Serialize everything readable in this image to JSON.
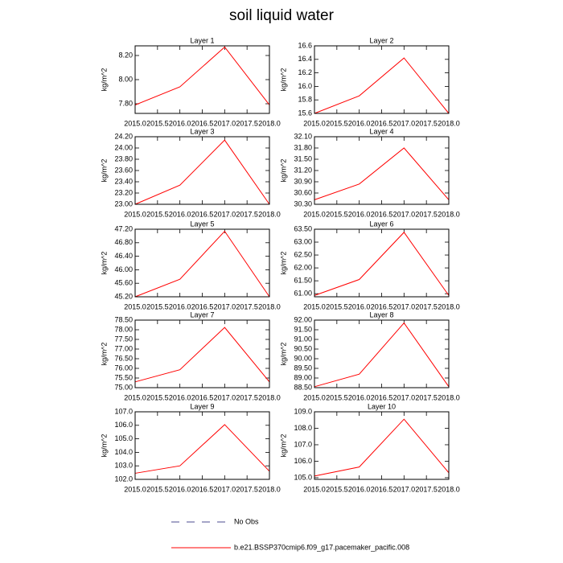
{
  "title": "soil liquid water",
  "legend": [
    {
      "name": "No Obs",
      "color": "#4b4b8f",
      "dash": true
    },
    {
      "name": "b.e21.BSSP370cmip6.f09_g17.pacemaker_pacific.008",
      "color": "#ff0000",
      "dash": false
    }
  ],
  "chart_data": [
    {
      "type": "line",
      "title": "Layer 1",
      "ylabel": "kg/m^2",
      "x": [
        2015,
        2016,
        2017,
        2018
      ],
      "series": [
        {
          "color": "#ff0000",
          "values": [
            7.79,
            7.94,
            8.27,
            7.79
          ]
        }
      ],
      "xlim": [
        2015,
        2018
      ],
      "xticks": [
        {
          "value": 2015,
          "label": "2015.0"
        },
        {
          "value": 2015.5,
          "label": "2015.5"
        },
        {
          "value": 2016,
          "label": "2016.0"
        },
        {
          "value": 2016.5,
          "label": "2016.5"
        },
        {
          "value": 2017,
          "label": "2017.0"
        },
        {
          "value": 2017.5,
          "label": "2017.5"
        },
        {
          "value": 2018,
          "label": "2018.0"
        }
      ],
      "ylim": [
        7.72,
        8.28
      ],
      "yticks": [
        {
          "value": 7.8,
          "label": "7.80"
        },
        {
          "value": 8,
          "label": "8.00"
        },
        {
          "value": 8.2,
          "label": "8.20"
        }
      ]
    },
    {
      "type": "line",
      "title": "Layer 2",
      "ylabel": "kg/m^2",
      "x": [
        2015,
        2016,
        2017,
        2018
      ],
      "series": [
        {
          "color": "#ff0000",
          "values": [
            15.6,
            15.86,
            16.42,
            15.6
          ]
        }
      ],
      "xlim": [
        2015,
        2018
      ],
      "xticks": [
        {
          "value": 2015,
          "label": "2015.0"
        },
        {
          "value": 2015.5,
          "label": "2015.5"
        },
        {
          "value": 2016,
          "label": "2016.0"
        },
        {
          "value": 2016.5,
          "label": "2016.5"
        },
        {
          "value": 2017,
          "label": "2017.0"
        },
        {
          "value": 2017.5,
          "label": "2017.5"
        },
        {
          "value": 2018,
          "label": "2018.0"
        }
      ],
      "ylim": [
        15.6,
        16.6
      ],
      "yticks": [
        15.6,
        15.8,
        {
          "value": 16,
          "label": "16.0"
        },
        16.2,
        16.4,
        16.6
      ]
    },
    {
      "type": "line",
      "title": "Layer 3",
      "ylabel": "kg/m^2",
      "x": [
        2015,
        2016,
        2017,
        2018
      ],
      "series": [
        {
          "color": "#ff0000",
          "values": [
            23.0,
            23.34,
            24.14,
            23.0
          ]
        }
      ],
      "xlim": [
        2015,
        2018
      ],
      "xticks": [
        {
          "value": 2015,
          "label": "2015.0"
        },
        {
          "value": 2015.5,
          "label": "2015.5"
        },
        {
          "value": 2016,
          "label": "2016.0"
        },
        {
          "value": 2016.5,
          "label": "2016.5"
        },
        {
          "value": 2017,
          "label": "2017.0"
        },
        {
          "value": 2017.5,
          "label": "2017.5"
        },
        {
          "value": 2018,
          "label": "2018.0"
        }
      ],
      "ylim": [
        23.0,
        24.2
      ],
      "yticks": [
        {
          "value": 23,
          "label": "23.00"
        },
        {
          "value": 23.2,
          "label": "23.20"
        },
        {
          "value": 23.4,
          "label": "23.40"
        },
        {
          "value": 23.6,
          "label": "23.60"
        },
        {
          "value": 23.8,
          "label": "23.80"
        },
        {
          "value": 24,
          "label": "24.00"
        },
        {
          "value": 24.2,
          "label": "24.20"
        }
      ]
    },
    {
      "type": "line",
      "title": "Layer 4",
      "ylabel": "kg/m^2",
      "x": [
        2015,
        2016,
        2017,
        2018
      ],
      "series": [
        {
          "color": "#ff0000",
          "values": [
            30.42,
            30.84,
            31.8,
            30.42
          ]
        }
      ],
      "xlim": [
        2015,
        2018
      ],
      "xticks": [
        {
          "value": 2015,
          "label": "2015.0"
        },
        {
          "value": 2015.5,
          "label": "2015.5"
        },
        {
          "value": 2016,
          "label": "2016.0"
        },
        {
          "value": 2016.5,
          "label": "2016.5"
        },
        {
          "value": 2017,
          "label": "2017.0"
        },
        {
          "value": 2017.5,
          "label": "2017.5"
        },
        {
          "value": 2018,
          "label": "2018.0"
        }
      ],
      "ylim": [
        30.3,
        32.1
      ],
      "yticks": [
        {
          "value": 30.3,
          "label": "30.30"
        },
        {
          "value": 30.6,
          "label": "30.60"
        },
        {
          "value": 30.9,
          "label": "30.90"
        },
        {
          "value": 31.2,
          "label": "31.20"
        },
        {
          "value": 31.5,
          "label": "31.50"
        },
        {
          "value": 31.8,
          "label": "31.80"
        },
        {
          "value": 32.1,
          "label": "32.10"
        }
      ]
    },
    {
      "type": "line",
      "title": "Layer 5",
      "ylabel": "kg/m^2",
      "x": [
        2015,
        2016,
        2017,
        2018
      ],
      "series": [
        {
          "color": "#ff0000",
          "values": [
            45.2,
            45.72,
            47.14,
            45.2
          ]
        }
      ],
      "xlim": [
        2015,
        2018
      ],
      "xticks": [
        {
          "value": 2015,
          "label": "2015.0"
        },
        {
          "value": 2015.5,
          "label": "2015.5"
        },
        {
          "value": 2016,
          "label": "2016.0"
        },
        {
          "value": 2016.5,
          "label": "2016.5"
        },
        {
          "value": 2017,
          "label": "2017.0"
        },
        {
          "value": 2017.5,
          "label": "2017.5"
        },
        {
          "value": 2018,
          "label": "2018.0"
        }
      ],
      "ylim": [
        45.2,
        47.2
      ],
      "yticks": [
        {
          "value": 45.2,
          "label": "45.20"
        },
        {
          "value": 45.6,
          "label": "45.60"
        },
        {
          "value": 46,
          "label": "46.00"
        },
        {
          "value": 46.4,
          "label": "46.40"
        },
        {
          "value": 46.8,
          "label": "46.80"
        },
        {
          "value": 47.2,
          "label": "47.20"
        }
      ]
    },
    {
      "type": "line",
      "title": "Layer 6",
      "ylabel": "kg/m^2",
      "x": [
        2015,
        2016,
        2017,
        2018
      ],
      "series": [
        {
          "color": "#ff0000",
          "values": [
            60.93,
            61.55,
            63.38,
            60.93
          ]
        }
      ],
      "xlim": [
        2015,
        2018
      ],
      "xticks": [
        {
          "value": 2015,
          "label": "2015.0"
        },
        {
          "value": 2015.5,
          "label": "2015.5"
        },
        {
          "value": 2016,
          "label": "2016.0"
        },
        {
          "value": 2016.5,
          "label": "2016.5"
        },
        {
          "value": 2017,
          "label": "2017.0"
        },
        {
          "value": 2017.5,
          "label": "2017.5"
        },
        {
          "value": 2018,
          "label": "2018.0"
        }
      ],
      "ylim": [
        60.88,
        63.5
      ],
      "yticks": [
        {
          "value": 61,
          "label": "61.00"
        },
        {
          "value": 61.5,
          "label": "61.50"
        },
        {
          "value": 62,
          "label": "62.00"
        },
        {
          "value": 62.5,
          "label": "62.50"
        },
        {
          "value": 63,
          "label": "63.00"
        },
        {
          "value": 63.5,
          "label": "63.50"
        }
      ]
    },
    {
      "type": "line",
      "title": "Layer 7",
      "ylabel": "kg/m^2",
      "x": [
        2015,
        2016,
        2017,
        2018
      ],
      "series": [
        {
          "color": "#ff0000",
          "values": [
            75.3,
            75.93,
            78.12,
            75.3
          ]
        }
      ],
      "xlim": [
        2015,
        2018
      ],
      "xticks": [
        {
          "value": 2015,
          "label": "2015.0"
        },
        {
          "value": 2015.5,
          "label": "2015.5"
        },
        {
          "value": 2016,
          "label": "2016.0"
        },
        {
          "value": 2016.5,
          "label": "2016.5"
        },
        {
          "value": 2017,
          "label": "2017.0"
        },
        {
          "value": 2017.5,
          "label": "2017.5"
        },
        {
          "value": 2018,
          "label": "2018.0"
        }
      ],
      "ylim": [
        75.0,
        78.5
      ],
      "yticks": [
        {
          "value": 75,
          "label": "75.00"
        },
        {
          "value": 75.5,
          "label": "75.50"
        },
        {
          "value": 76,
          "label": "76.00"
        },
        {
          "value": 76.5,
          "label": "76.50"
        },
        {
          "value": 77,
          "label": "77.00"
        },
        {
          "value": 77.5,
          "label": "77.50"
        },
        {
          "value": 78,
          "label": "78.00"
        },
        {
          "value": 78.5,
          "label": "78.50"
        }
      ]
    },
    {
      "type": "line",
      "title": "Layer 8",
      "ylabel": "kg/m^2",
      "x": [
        2015,
        2016,
        2017,
        2018
      ],
      "series": [
        {
          "color": "#ff0000",
          "values": [
            88.55,
            89.2,
            91.85,
            88.55
          ]
        }
      ],
      "xlim": [
        2015,
        2018
      ],
      "xticks": [
        {
          "value": 2015,
          "label": "2015.0"
        },
        {
          "value": 2015.5,
          "label": "2015.5"
        },
        {
          "value": 2016,
          "label": "2016.0"
        },
        {
          "value": 2016.5,
          "label": "2016.5"
        },
        {
          "value": 2017,
          "label": "2017.0"
        },
        {
          "value": 2017.5,
          "label": "2017.5"
        },
        {
          "value": 2018,
          "label": "2018.0"
        }
      ],
      "ylim": [
        88.5,
        92.0
      ],
      "yticks": [
        {
          "value": 88.5,
          "label": "88.50"
        },
        {
          "value": 89,
          "label": "89.00"
        },
        {
          "value": 89.5,
          "label": "89.50"
        },
        {
          "value": 90,
          "label": "90.00"
        },
        {
          "value": 90.5,
          "label": "90.50"
        },
        {
          "value": 91,
          "label": "91.00"
        },
        {
          "value": 91.5,
          "label": "91.50"
        },
        {
          "value": 92,
          "label": "92.00"
        }
      ]
    },
    {
      "type": "line",
      "title": "Layer 9",
      "ylabel": "kg/m^2",
      "x": [
        2015,
        2016,
        2017,
        2018
      ],
      "series": [
        {
          "color": "#ff0000",
          "values": [
            102.45,
            103.0,
            106.05,
            102.6
          ]
        }
      ],
      "xlim": [
        2015,
        2018
      ],
      "xticks": [
        {
          "value": 2015,
          "label": "2015.0"
        },
        {
          "value": 2015.5,
          "label": "2015.5"
        },
        {
          "value": 2016,
          "label": "2016.0"
        },
        {
          "value": 2016.5,
          "label": "2016.5"
        },
        {
          "value": 2017,
          "label": "2017.0"
        },
        {
          "value": 2017.5,
          "label": "2017.5"
        },
        {
          "value": 2018,
          "label": "2018.0"
        }
      ],
      "ylim": [
        102.0,
        107.0
      ],
      "yticks": [
        {
          "value": 102,
          "label": "102.0"
        },
        {
          "value": 103,
          "label": "103.0"
        },
        {
          "value": 104,
          "label": "104.0"
        },
        {
          "value": 105,
          "label": "105.0"
        },
        {
          "value": 106,
          "label": "106.0"
        },
        {
          "value": 107,
          "label": "107.0"
        }
      ]
    },
    {
      "type": "line",
      "title": "Layer 10",
      "ylabel": "kg/m^2",
      "x": [
        2015,
        2016,
        2017,
        2018
      ],
      "series": [
        {
          "color": "#ff0000",
          "values": [
            105.1,
            105.65,
            108.55,
            105.3
          ]
        }
      ],
      "xlim": [
        2015,
        2018
      ],
      "xticks": [
        {
          "value": 2015,
          "label": "2015.0"
        },
        {
          "value": 2015.5,
          "label": "2015.5"
        },
        {
          "value": 2016,
          "label": "2016.0"
        },
        {
          "value": 2016.5,
          "label": "2016.5"
        },
        {
          "value": 2017,
          "label": "2017.0"
        },
        {
          "value": 2017.5,
          "label": "2017.5"
        },
        {
          "value": 2018,
          "label": "2018.0"
        }
      ],
      "ylim": [
        104.9,
        109.0
      ],
      "yticks": [
        {
          "value": 105,
          "label": "105.0"
        },
        {
          "value": 106,
          "label": "106.0"
        },
        {
          "value": 107,
          "label": "107.0"
        },
        {
          "value": 108,
          "label": "108.0"
        },
        {
          "value": 109,
          "label": "109.0"
        }
      ]
    }
  ]
}
